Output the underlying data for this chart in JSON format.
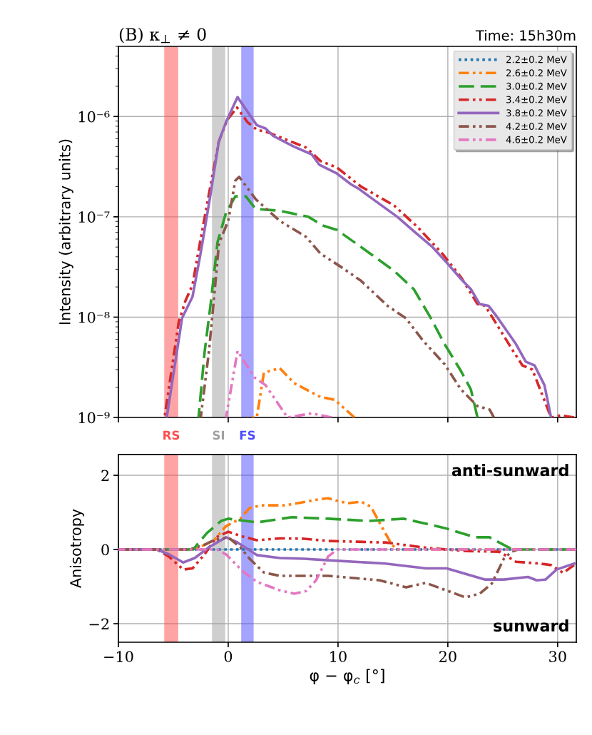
{
  "chart_data": [
    {
      "type": "line",
      "title": "(B) κ$_{⊥}$ ≠ 0",
      "subtitle": "Time: 15h30m",
      "ylabel": "Intensity (arbitrary units)",
      "log": "y",
      "grid": true,
      "legend": "top right",
      "tick_labels": "y",
      "xlim": [
        -10,
        31.7
      ],
      "xticks": [
        -10,
        0,
        10,
        20,
        30
      ],
      "ylim": [
        1e-09,
        5e-06
      ],
      "yticks": [
        {
          "value": 1e-09,
          "label": "10⁻⁹"
        },
        {
          "value": 1e-08,
          "label": "10⁻⁸"
        },
        {
          "value": 1e-07,
          "label": "10⁻⁷"
        },
        {
          "value": 1e-06,
          "label": "10⁻⁶"
        }
      ],
      "bands": [
        {
          "axis": "x",
          "from": -5.78,
          "to": -4.6,
          "label": "RS",
          "color": "#ff4b4b"
        },
        {
          "axis": "x",
          "from": -1.43,
          "to": -0.32,
          "label": "SI",
          "color": "#a0a0a0"
        },
        {
          "axis": "x",
          "from": 1.23,
          "to": 2.27,
          "label": "FS",
          "color": "#4b4bff"
        }
      ],
      "series": [
        {
          "name": "2.2±0.2 MeV",
          "color": "#1f77b4",
          "line_style": "dotted"
        },
        {
          "name": "2.6±0.2 MeV",
          "color": "#ff7f0e",
          "line_style": "dashdot",
          "x": [
            1.75,
            2.6,
            3.25,
            4.7,
            6.0,
            8.4,
            9.7,
            11.5
          ],
          "values": [
            1e-09,
            1e-09,
            2.8e-09,
            3.1e-09,
            2.2e-09,
            1.6e-09,
            1.5e-09,
            1e-09
          ]
        },
        {
          "name": "3.0±0.2 MeV",
          "color": "#2ca02c",
          "line_style": "dashed",
          "x": [
            -2.7,
            -2.15,
            -1.6,
            -0.97,
            -0.2,
            0.65,
            1.6,
            2.5,
            4.7,
            7.3,
            8.6,
            9.9,
            12.1,
            15.1,
            16.9,
            18.4,
            19.7,
            21.2,
            22.1,
            22.7
          ],
          "values": [
            1e-09,
            4.5e-09,
            1.35e-08,
            5.6e-08,
            1.1e-07,
            1.6e-07,
            1.6e-07,
            1.2e-07,
            1.15e-07,
            1e-07,
            8.2e-08,
            7.4e-08,
            5e-08,
            2.9e-08,
            1.9e-08,
            1e-08,
            5.4e-09,
            2.9e-09,
            1.9e-09,
            1e-09
          ]
        },
        {
          "name": "3.4±0.2 MeV",
          "color": "#d62728",
          "line_style": "dashdot",
          "x": [
            -5.8,
            -4.5,
            -3.9,
            -3.25,
            -2.7,
            -1.75,
            -0.86,
            -0.1,
            0.8,
            1.75,
            2.6,
            3.7,
            7.1,
            8.4,
            9.9,
            12.1,
            15.1,
            17.3,
            19.5,
            21.2,
            22.7,
            23.4,
            26.0,
            26.8,
            27.7,
            29.4,
            30.3,
            31.5
          ],
          "values": [
            1e-09,
            9e-09,
            1.45e-08,
            2.1e-08,
            4.6e-08,
            1.7e-07,
            5.6e-07,
            9.2e-07,
            1.23e-06,
            8.8e-07,
            7.4e-07,
            6.9e-07,
            4.9e-07,
            3.6e-07,
            3.1e-07,
            2e-07,
            1.3e-07,
            7.8e-08,
            4.3e-08,
            2.5e-08,
            1.35e-08,
            1.3e-08,
            4.5e-09,
            3.3e-09,
            3e-09,
            1e-09,
            1.05e-09,
            1e-09
          ]
        },
        {
          "name": "3.8±0.2 MeV",
          "color": "#9467bd",
          "line_style": "solid",
          "x": [
            -5.6,
            -4.2,
            -3.25,
            -2.47,
            -1.6,
            -0.86,
            -0.2,
            0.85,
            2.6,
            3.4,
            4.1,
            6.0,
            7.6,
            8.3,
            9.9,
            11.2,
            11.9,
            13.0,
            15.4,
            17.1,
            18.6,
            19.9,
            21.2,
            22.1,
            22.9,
            23.7,
            24.5,
            26.2,
            27.1,
            27.9,
            28.8,
            29.4
          ],
          "values": [
            1e-09,
            9.8e-09,
            1.6e-08,
            4.6e-08,
            1.7e-07,
            5.6e-07,
            8.8e-07,
            1.56e-06,
            8.2e-07,
            7.6e-07,
            6.4e-07,
            5e-07,
            4.2e-07,
            3.3e-07,
            2.7e-07,
            2.1e-07,
            1.9e-07,
            1.55e-07,
            1e-07,
            6.9e-08,
            5e-08,
            3.5e-08,
            2.4e-08,
            1.9e-08,
            1.35e-08,
            1.3e-08,
            1e-08,
            5.4e-09,
            3.6e-09,
            3.3e-09,
            2.1e-09,
            1e-09
          ]
        },
        {
          "name": "4.2±0.2 MeV",
          "color": "#8c564b",
          "line_style": "dashdot",
          "x": [
            -2.5,
            -1.75,
            -1.2,
            -0.85,
            0,
            0.65,
            1.0,
            2.5,
            4.7,
            7.1,
            8.4,
            10.4,
            12.1,
            14.5,
            16.2,
            17.7,
            19.7,
            21.2,
            22.7,
            23.8,
            24.2
          ],
          "values": [
            1e-09,
            4.6e-09,
            2e-08,
            5.4e-08,
            9.1e-08,
            2.3e-07,
            2.5e-07,
            1.5e-07,
            9.1e-08,
            6.3e-08,
            4.3e-08,
            3.1e-08,
            2.3e-08,
            1.3e-08,
            9.7e-09,
            5.9e-09,
            3.4e-09,
            1.9e-09,
            1.3e-09,
            1.2e-09,
            1e-09
          ]
        },
        {
          "name": "4.6±0.2 MeV",
          "color": "#e377c2",
          "line_style": "dashdot",
          "x": [
            -0.2,
            0.85,
            2.4,
            3.4,
            5.4,
            7.6,
            9.4
          ],
          "values": [
            1e-09,
            4.6e-09,
            2.5e-09,
            2.1e-09,
            1e-09,
            1.1e-09,
            1e-09
          ]
        }
      ]
    },
    {
      "type": "line",
      "xlabel": "φ − φ$_{c}$ [°]",
      "ylabel": "Anisotropy",
      "grid": true,
      "xlim": [
        -10,
        31.7
      ],
      "xticks": [
        {
          "value": -10,
          "label": "−10"
        },
        0,
        10,
        20,
        30
      ],
      "ylim": [
        -2.5,
        2.56
      ],
      "yticks": [
        {
          "value": -2,
          "label": "−2"
        },
        0,
        2
      ],
      "annotations": [
        "anti-sunward",
        "sunward"
      ],
      "bands": [
        {
          "axis": "x",
          "from": -5.78,
          "to": -4.6,
          "color": "#ff4b4b"
        },
        {
          "axis": "x",
          "from": -1.43,
          "to": -0.32,
          "color": "#a0a0a0"
        },
        {
          "axis": "x",
          "from": 1.23,
          "to": 2.27,
          "color": "#4b4bff"
        }
      ],
      "series": [
        {
          "color": "#1f77b4",
          "line_style": "dotted",
          "x": [
            -10,
            31.7
          ],
          "values": [
            0,
            0
          ]
        },
        {
          "color": "#ff7f0e",
          "line_style": "dashdot",
          "x": [
            -10,
            -3.0,
            -1.3,
            -0.2,
            1.1,
            1.95,
            3.05,
            5.2,
            8.2,
            9.1,
            10.2,
            11.0,
            12.1,
            13.0,
            13.8,
            14.9,
            15.4,
            31.7
          ],
          "values": [
            0,
            0,
            0.25,
            0.63,
            0.83,
            1.12,
            1.19,
            1.19,
            1.35,
            1.38,
            1.29,
            1.25,
            1.29,
            1.15,
            0.71,
            0.13,
            0,
            0
          ]
        },
        {
          "color": "#2ca02c",
          "line_style": "dashed",
          "x": [
            -10,
            -3.2,
            -1.95,
            -0.65,
            0,
            2.6,
            5.8,
            9.1,
            12.8,
            16.0,
            19.7,
            22.5,
            23.8,
            25.5,
            26.0,
            31.7
          ],
          "values": [
            0,
            0,
            0.44,
            0.77,
            0.83,
            0.73,
            0.87,
            0.83,
            0.77,
            0.83,
            0.58,
            0.33,
            0.33,
            0.06,
            0,
            0
          ]
        },
        {
          "color": "#d62728",
          "line_style": "dashdot",
          "x": [
            -10,
            -6.5,
            -5.4,
            -4.1,
            -3.25,
            -2.15,
            -1.1,
            0,
            1.3,
            2.6,
            4.7,
            6.9,
            9.1,
            14.3,
            18.2,
            21.6,
            24.7,
            26.2,
            28.4,
            29.4,
            30.5,
            31.5
          ],
          "values": [
            0,
            0,
            -0.19,
            -0.54,
            -0.51,
            -0.13,
            0.33,
            0.48,
            0.35,
            0.25,
            0.3,
            0.29,
            0.23,
            0.19,
            0.04,
            -0.04,
            -0.06,
            -0.33,
            -0.38,
            -0.42,
            -0.63,
            -0.42
          ]
        },
        {
          "color": "#9467bd",
          "line_style": "solid",
          "x": [
            -10,
            -6.5,
            -5.4,
            -4.1,
            -3.05,
            -1.75,
            -0.2,
            0.85,
            2.6,
            4.7,
            6.9,
            9.1,
            14.3,
            18.0,
            19.9,
            23.4,
            25.1,
            27.3,
            28.1,
            28.9,
            29.9,
            31.5
          ],
          "values": [
            0,
            0,
            -0.13,
            -0.35,
            -0.23,
            0.06,
            0.33,
            0.19,
            -0.15,
            -0.23,
            -0.25,
            -0.29,
            -0.38,
            -0.51,
            -0.51,
            -0.81,
            -0.81,
            -0.74,
            -0.83,
            -0.81,
            -0.54,
            -0.38
          ]
        },
        {
          "color": "#8c564b",
          "line_style": "dashdot",
          "x": [
            -10,
            -3.5,
            -2.15,
            -1.3,
            0,
            1.1,
            1.95,
            3.25,
            4.7,
            9.1,
            13.8,
            16.2,
            18.0,
            20.3,
            21.6,
            22.9,
            24.0,
            25.1,
            25.8,
            26.4,
            31.7
          ],
          "values": [
            0,
            0,
            0.13,
            0.25,
            0.33,
            0.06,
            -0.25,
            -0.62,
            -0.71,
            -0.71,
            -0.83,
            -1.02,
            -0.9,
            -1.15,
            -1.29,
            -1.19,
            -0.92,
            -0.25,
            -0.06,
            0,
            0
          ]
        },
        {
          "color": "#e377c2",
          "line_style": "dashdot",
          "x": [
            -10,
            -1.0,
            -0.2,
            1.3,
            2.6,
            4.7,
            6.0,
            7.1,
            8.0,
            9.1,
            9.9,
            31.7
          ],
          "values": [
            0,
            0,
            -0.13,
            -0.58,
            -0.87,
            -1.1,
            -1.19,
            -1.12,
            -0.83,
            -0.19,
            0,
            0
          ]
        }
      ]
    }
  ]
}
